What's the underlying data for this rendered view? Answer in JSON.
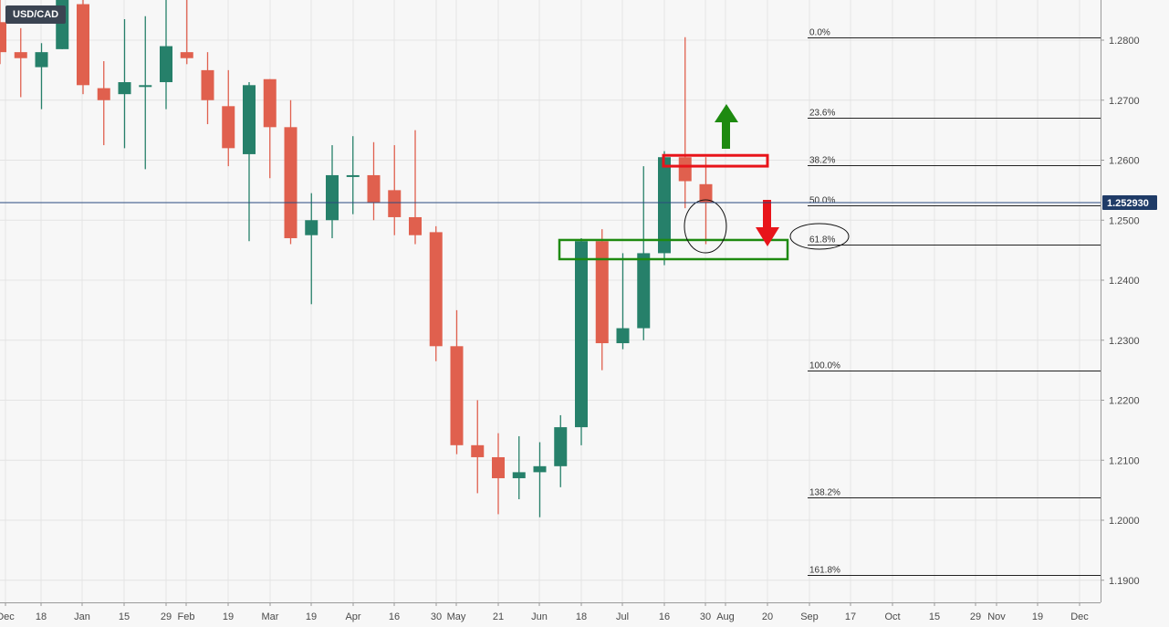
{
  "symbol": "USD/CAD",
  "current_price_label": "1.252930",
  "colors": {
    "up": "#26806a",
    "down": "#e0604e",
    "grid": "#e4e4e4",
    "price_line": "#2a4a7f",
    "fib_line": "#222222",
    "red_annotation": "#e8141a",
    "green_annotation": "#1e8a10",
    "background": "#f7f7f7"
  },
  "chart_data": {
    "type": "candlestick",
    "title": "",
    "xlabel": "",
    "ylabel": "",
    "ylim": [
      1.183,
      1.2865
    ],
    "current_price": 1.25293,
    "y_ticks": [
      "1.1900",
      "1.2000",
      "1.2100",
      "1.2200",
      "1.2300",
      "1.2400",
      "1.2500",
      "1.2600",
      "1.2700",
      "1.2800"
    ],
    "x_ticks": [
      "Dec",
      "18",
      "Jan",
      "15",
      "29",
      "Feb",
      "19",
      "Mar",
      "19",
      "Apr",
      "16",
      "30",
      "May",
      "21",
      "Jun",
      "18",
      "Jul",
      "16",
      "30",
      "Aug",
      "20",
      "Sep",
      "17",
      "Oct",
      "15",
      "29",
      "Nov",
      "19",
      "Dec"
    ],
    "candles": [
      {
        "o": 1.283,
        "h": 1.2885,
        "l": 1.276,
        "c": 1.278
      },
      {
        "o": 1.278,
        "h": 1.282,
        "l": 1.2705,
        "c": 1.277
      },
      {
        "o": 1.2755,
        "h": 1.2795,
        "l": 1.2685,
        "c": 1.278
      },
      {
        "o": 1.2785,
        "h": 1.2885,
        "l": 1.2785,
        "c": 1.288
      },
      {
        "o": 1.286,
        "h": 1.289,
        "l": 1.271,
        "c": 1.2725
      },
      {
        "o": 1.272,
        "h": 1.2765,
        "l": 1.2625,
        "c": 1.27
      },
      {
        "o": 1.271,
        "h": 1.2835,
        "l": 1.262,
        "c": 1.273
      },
      {
        "o": 1.2725,
        "h": 1.284,
        "l": 1.2585,
        "c": 1.2725
      },
      {
        "o": 1.273,
        "h": 1.2875,
        "l": 1.2685,
        "c": 1.279
      },
      {
        "o": 1.278,
        "h": 1.288,
        "l": 1.276,
        "c": 1.277
      },
      {
        "o": 1.275,
        "h": 1.278,
        "l": 1.266,
        "c": 1.27
      },
      {
        "o": 1.269,
        "h": 1.275,
        "l": 1.259,
        "c": 1.262
      },
      {
        "o": 1.261,
        "h": 1.273,
        "l": 1.2465,
        "c": 1.2725
      },
      {
        "o": 1.2735,
        "h": 1.2735,
        "l": 1.257,
        "c": 1.2655
      },
      {
        "o": 1.2655,
        "h": 1.27,
        "l": 1.246,
        "c": 1.247
      },
      {
        "o": 1.2475,
        "h": 1.2545,
        "l": 1.236,
        "c": 1.25
      },
      {
        "o": 1.25,
        "h": 1.2625,
        "l": 1.247,
        "c": 1.2575
      },
      {
        "o": 1.2575,
        "h": 1.264,
        "l": 1.251,
        "c": 1.2575
      },
      {
        "o": 1.2575,
        "h": 1.263,
        "l": 1.25,
        "c": 1.253
      },
      {
        "o": 1.255,
        "h": 1.2625,
        "l": 1.2475,
        "c": 1.2505
      },
      {
        "o": 1.2505,
        "h": 1.265,
        "l": 1.246,
        "c": 1.2475
      },
      {
        "o": 1.248,
        "h": 1.249,
        "l": 1.2265,
        "c": 1.229
      },
      {
        "o": 1.229,
        "h": 1.235,
        "l": 1.211,
        "c": 1.2125
      },
      {
        "o": 1.2125,
        "h": 1.22,
        "l": 1.2045,
        "c": 1.2105
      },
      {
        "o": 1.2105,
        "h": 1.2145,
        "l": 1.201,
        "c": 1.207
      },
      {
        "o": 1.207,
        "h": 1.214,
        "l": 1.2035,
        "c": 1.208
      },
      {
        "o": 1.208,
        "h": 1.213,
        "l": 1.2005,
        "c": 1.209
      },
      {
        "o": 1.209,
        "h": 1.2175,
        "l": 1.2055,
        "c": 1.2155
      },
      {
        "o": 1.2155,
        "h": 1.247,
        "l": 1.2125,
        "c": 1.2465
      },
      {
        "o": 1.2465,
        "h": 1.2485,
        "l": 1.225,
        "c": 1.2295
      },
      {
        "o": 1.2295,
        "h": 1.2445,
        "l": 1.2285,
        "c": 1.232
      },
      {
        "o": 1.232,
        "h": 1.259,
        "l": 1.23,
        "c": 1.2445
      },
      {
        "o": 1.2445,
        "h": 1.2615,
        "l": 1.2425,
        "c": 1.2605
      },
      {
        "o": 1.2605,
        "h": 1.2805,
        "l": 1.252,
        "c": 1.2565
      },
      {
        "o": 1.256,
        "h": 1.2605,
        "l": 1.246,
        "c": 1.2529
      }
    ],
    "fibonacci": {
      "levels": [
        {
          "label": "0.0%",
          "price": 1.2805
        },
        {
          "label": "23.6%",
          "price": 1.2671
        },
        {
          "label": "38.2%",
          "price": 1.2591
        },
        {
          "label": "50.0%",
          "price": 1.2525
        },
        {
          "label": "61.8%",
          "price": 1.246
        },
        {
          "label": "100.0%",
          "price": 1.225
        },
        {
          "label": "138.2%",
          "price": 1.2038
        },
        {
          "label": "161.8%",
          "price": 1.1908
        }
      ]
    },
    "annotations": {
      "resistance_box": {
        "from": 1.259,
        "to": 1.2608,
        "color": "red"
      },
      "support_box": {
        "from": 1.2435,
        "to": 1.2467,
        "color": "green"
      },
      "arrow_up": {
        "color": "green"
      },
      "arrow_down": {
        "color": "red"
      }
    }
  }
}
